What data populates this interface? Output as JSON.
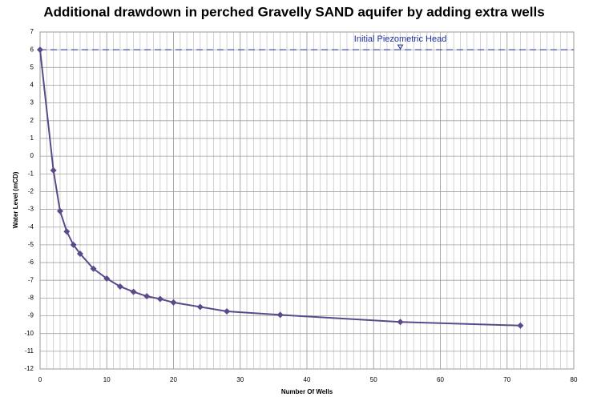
{
  "chart_data": {
    "type": "line",
    "title": "Additional drawdown in perched Gravelly SAND aquifer by adding extra wells",
    "x_label": "Number Of Wells",
    "y_label": "Water Level (mCD)",
    "x": [
      0,
      2,
      3,
      4,
      5,
      6,
      8,
      10,
      12,
      14,
      16,
      18,
      20,
      24,
      28,
      36,
      54,
      72
    ],
    "series": [
      {
        "name": "Water Level",
        "color": "#5b4a8b",
        "values": [
          6,
          -0.8,
          -3.1,
          -4.25,
          -5,
          -5.5,
          -6.35,
          -6.9,
          -7.35,
          -7.65,
          -7.9,
          -8.05,
          -8.25,
          -8.5,
          -8.75,
          -8.95,
          -9.35,
          -9.55
        ]
      }
    ],
    "xlim": [
      0,
      80
    ],
    "xticks": [
      0,
      10,
      20,
      30,
      40,
      50,
      60,
      70,
      80
    ],
    "ylim": [
      -12,
      7
    ],
    "yticks": [
      -12,
      -11,
      -10,
      -9,
      -8,
      -7,
      -6,
      -5,
      -4,
      -3,
      -2,
      -1,
      0,
      1,
      2,
      3,
      4,
      5,
      6,
      7
    ],
    "grid": true,
    "x_minor_step": 1,
    "reference_line": {
      "label": "Initial Piezometric Head",
      "y": 6,
      "label_x": 54,
      "color": "#1f2f9a"
    }
  }
}
